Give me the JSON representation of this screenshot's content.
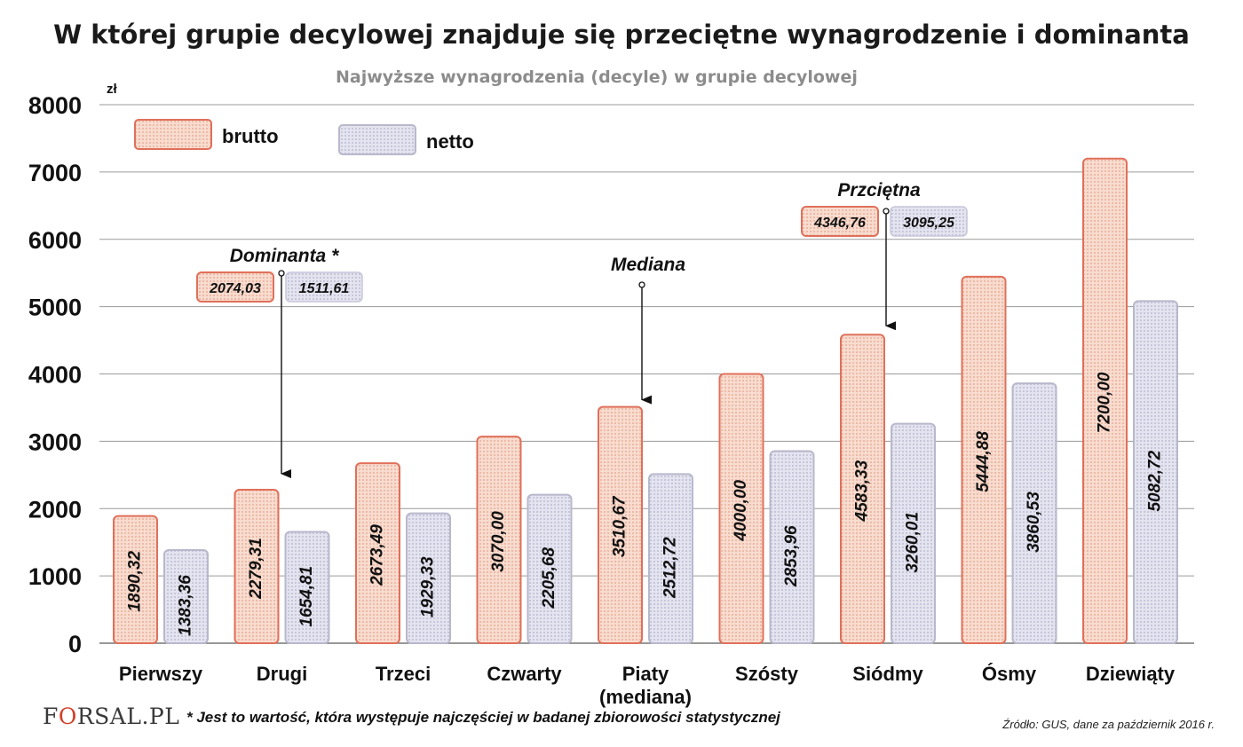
{
  "chart_data": {
    "type": "bar",
    "title": "W której grupie decylowej znajduje się przeciętne wynagrodzenie i dominanta",
    "subtitle": "Najwyższe wynagrodzenia  (decyle)  w grupie decylowej",
    "ylabel": "zł",
    "ylim": [
      0,
      8000
    ],
    "yticks": [
      0,
      1000,
      2000,
      3000,
      4000,
      5000,
      6000,
      7000,
      8000
    ],
    "grid": true,
    "legend_position": "top-left",
    "categories": [
      "Pierwszy",
      "Drugi",
      "Trzeci",
      "Czwarty",
      "Piaty (mediana)",
      "Szósty",
      "Siódmy",
      "Ósmy",
      "Dziewiąty"
    ],
    "category_lines": [
      [
        "Pierwszy"
      ],
      [
        "Drugi"
      ],
      [
        "Trzeci"
      ],
      [
        "Czwarty"
      ],
      [
        "Piaty",
        "(mediana)"
      ],
      [
        "Szósty"
      ],
      [
        "Siódmy"
      ],
      [
        "Ósmy"
      ],
      [
        "Dziewiąty"
      ]
    ],
    "series": [
      {
        "name": "brutto",
        "color": "#e0705a",
        "fill": "#f7d6c8",
        "values": [
          1890.32,
          2279.31,
          2673.49,
          3070.0,
          3510.67,
          4000.0,
          4583.33,
          5444.88,
          7200.0
        ],
        "labels": [
          "1890,32",
          "2279,31",
          "2673,49",
          "3070,00",
          "3510,67",
          "4000,00",
          "4583,33",
          "5444,88",
          "7200,00"
        ]
      },
      {
        "name": "netto",
        "color": "#b8b8cc",
        "fill": "#dcdcea",
        "values": [
          1383.36,
          1654.81,
          1929.33,
          2205.68,
          2512.72,
          2853.96,
          3260.01,
          3860.53,
          5082.72
        ],
        "labels": [
          "1383,36",
          "1654,81",
          "1929,33",
          "2205,68",
          "2512,72",
          "2853,96",
          "3260,01",
          "3860,53",
          "5082,72"
        ]
      }
    ],
    "annotations": [
      {
        "label": "Dominanta *",
        "brutto": "2074,03",
        "netto": "1511,61",
        "value": 2074.03,
        "category_index": 1,
        "arrow_to": 2279.31
      },
      {
        "label": "Mediana",
        "value": 3510.67,
        "category_index": 4,
        "arrow_to": 3510.67
      },
      {
        "label": "Przciętna",
        "brutto": "4346,76",
        "netto": "3095,25",
        "value": 4346.76,
        "category_index": 6,
        "arrow_to": 4583.33
      }
    ]
  },
  "footnote": "* Jest to wartość, która występuje najczęściej w badanej zbiorowości statystycznej",
  "source": "Źródło: GUS, dane za październik 2016 r.",
  "logo": {
    "prefix": "F",
    "ring": "O",
    "suffix": "RSAL.PL"
  }
}
